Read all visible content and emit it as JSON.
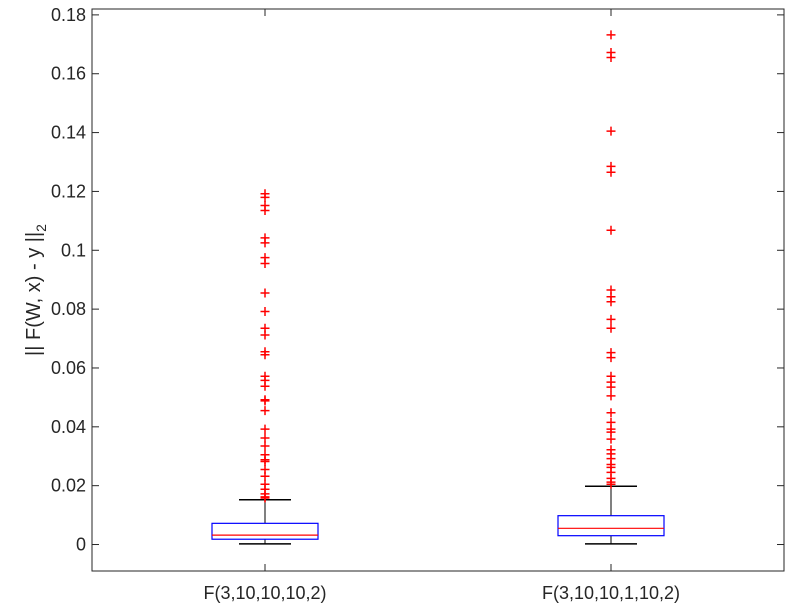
{
  "chart_data": {
    "type": "box",
    "title": "",
    "xlabel": "",
    "ylabel": "|| F(W, x) - y ||",
    "ylabel_subscript": "2",
    "ylim": [
      -0.009,
      0.182
    ],
    "yticks": [
      0,
      0.02,
      0.04,
      0.06,
      0.08,
      0.1,
      0.12,
      0.14,
      0.16,
      0.18
    ],
    "ytick_labels": [
      "0",
      "0.02",
      "0.04",
      "0.06",
      "0.08",
      "0.1",
      "0.12",
      "0.14",
      "0.16",
      "0.18"
    ],
    "categories": [
      "F(3,10,10,10,2)",
      "F(3,10,10,1,10,2)"
    ],
    "box_color": "#0000ff",
    "median_color": "#ff0000",
    "whisker_color": "#000000",
    "outlier_color": "#ff0000",
    "boxes": [
      {
        "category": "F(3,10,10,10,2)",
        "whisker_low": 0.0002,
        "q1": 0.0018,
        "median": 0.0032,
        "q3": 0.0072,
        "whisker_high": 0.0152,
        "outliers": [
          0.1192,
          0.118,
          0.1152,
          0.1135,
          0.1042,
          0.1025,
          0.0975,
          0.0955,
          0.0855,
          0.0792,
          0.0735,
          0.0712,
          0.0655,
          0.0645,
          0.0572,
          0.0558,
          0.0538,
          0.0492,
          0.0488,
          0.0455,
          0.0392,
          0.0362,
          0.0335,
          0.0305,
          0.0288,
          0.0282,
          0.0255,
          0.0232,
          0.0205,
          0.0188,
          0.0172,
          0.0162,
          0.0158
        ]
      },
      {
        "category": "F(3,10,10,1,10,2)",
        "whisker_low": 0.0002,
        "q1": 0.003,
        "median": 0.0055,
        "q3": 0.0098,
        "whisker_high": 0.0198,
        "outliers": [
          0.1732,
          0.1672,
          0.1655,
          0.1405,
          0.1285,
          0.1265,
          0.1068,
          0.0865,
          0.0842,
          0.0825,
          0.0765,
          0.0735,
          0.0652,
          0.0635,
          0.0572,
          0.0552,
          0.0535,
          0.0505,
          0.0448,
          0.0415,
          0.0392,
          0.0382,
          0.0358,
          0.0322,
          0.0308,
          0.0292,
          0.0272,
          0.0262,
          0.0245,
          0.0225,
          0.0212,
          0.0205
        ]
      }
    ]
  }
}
